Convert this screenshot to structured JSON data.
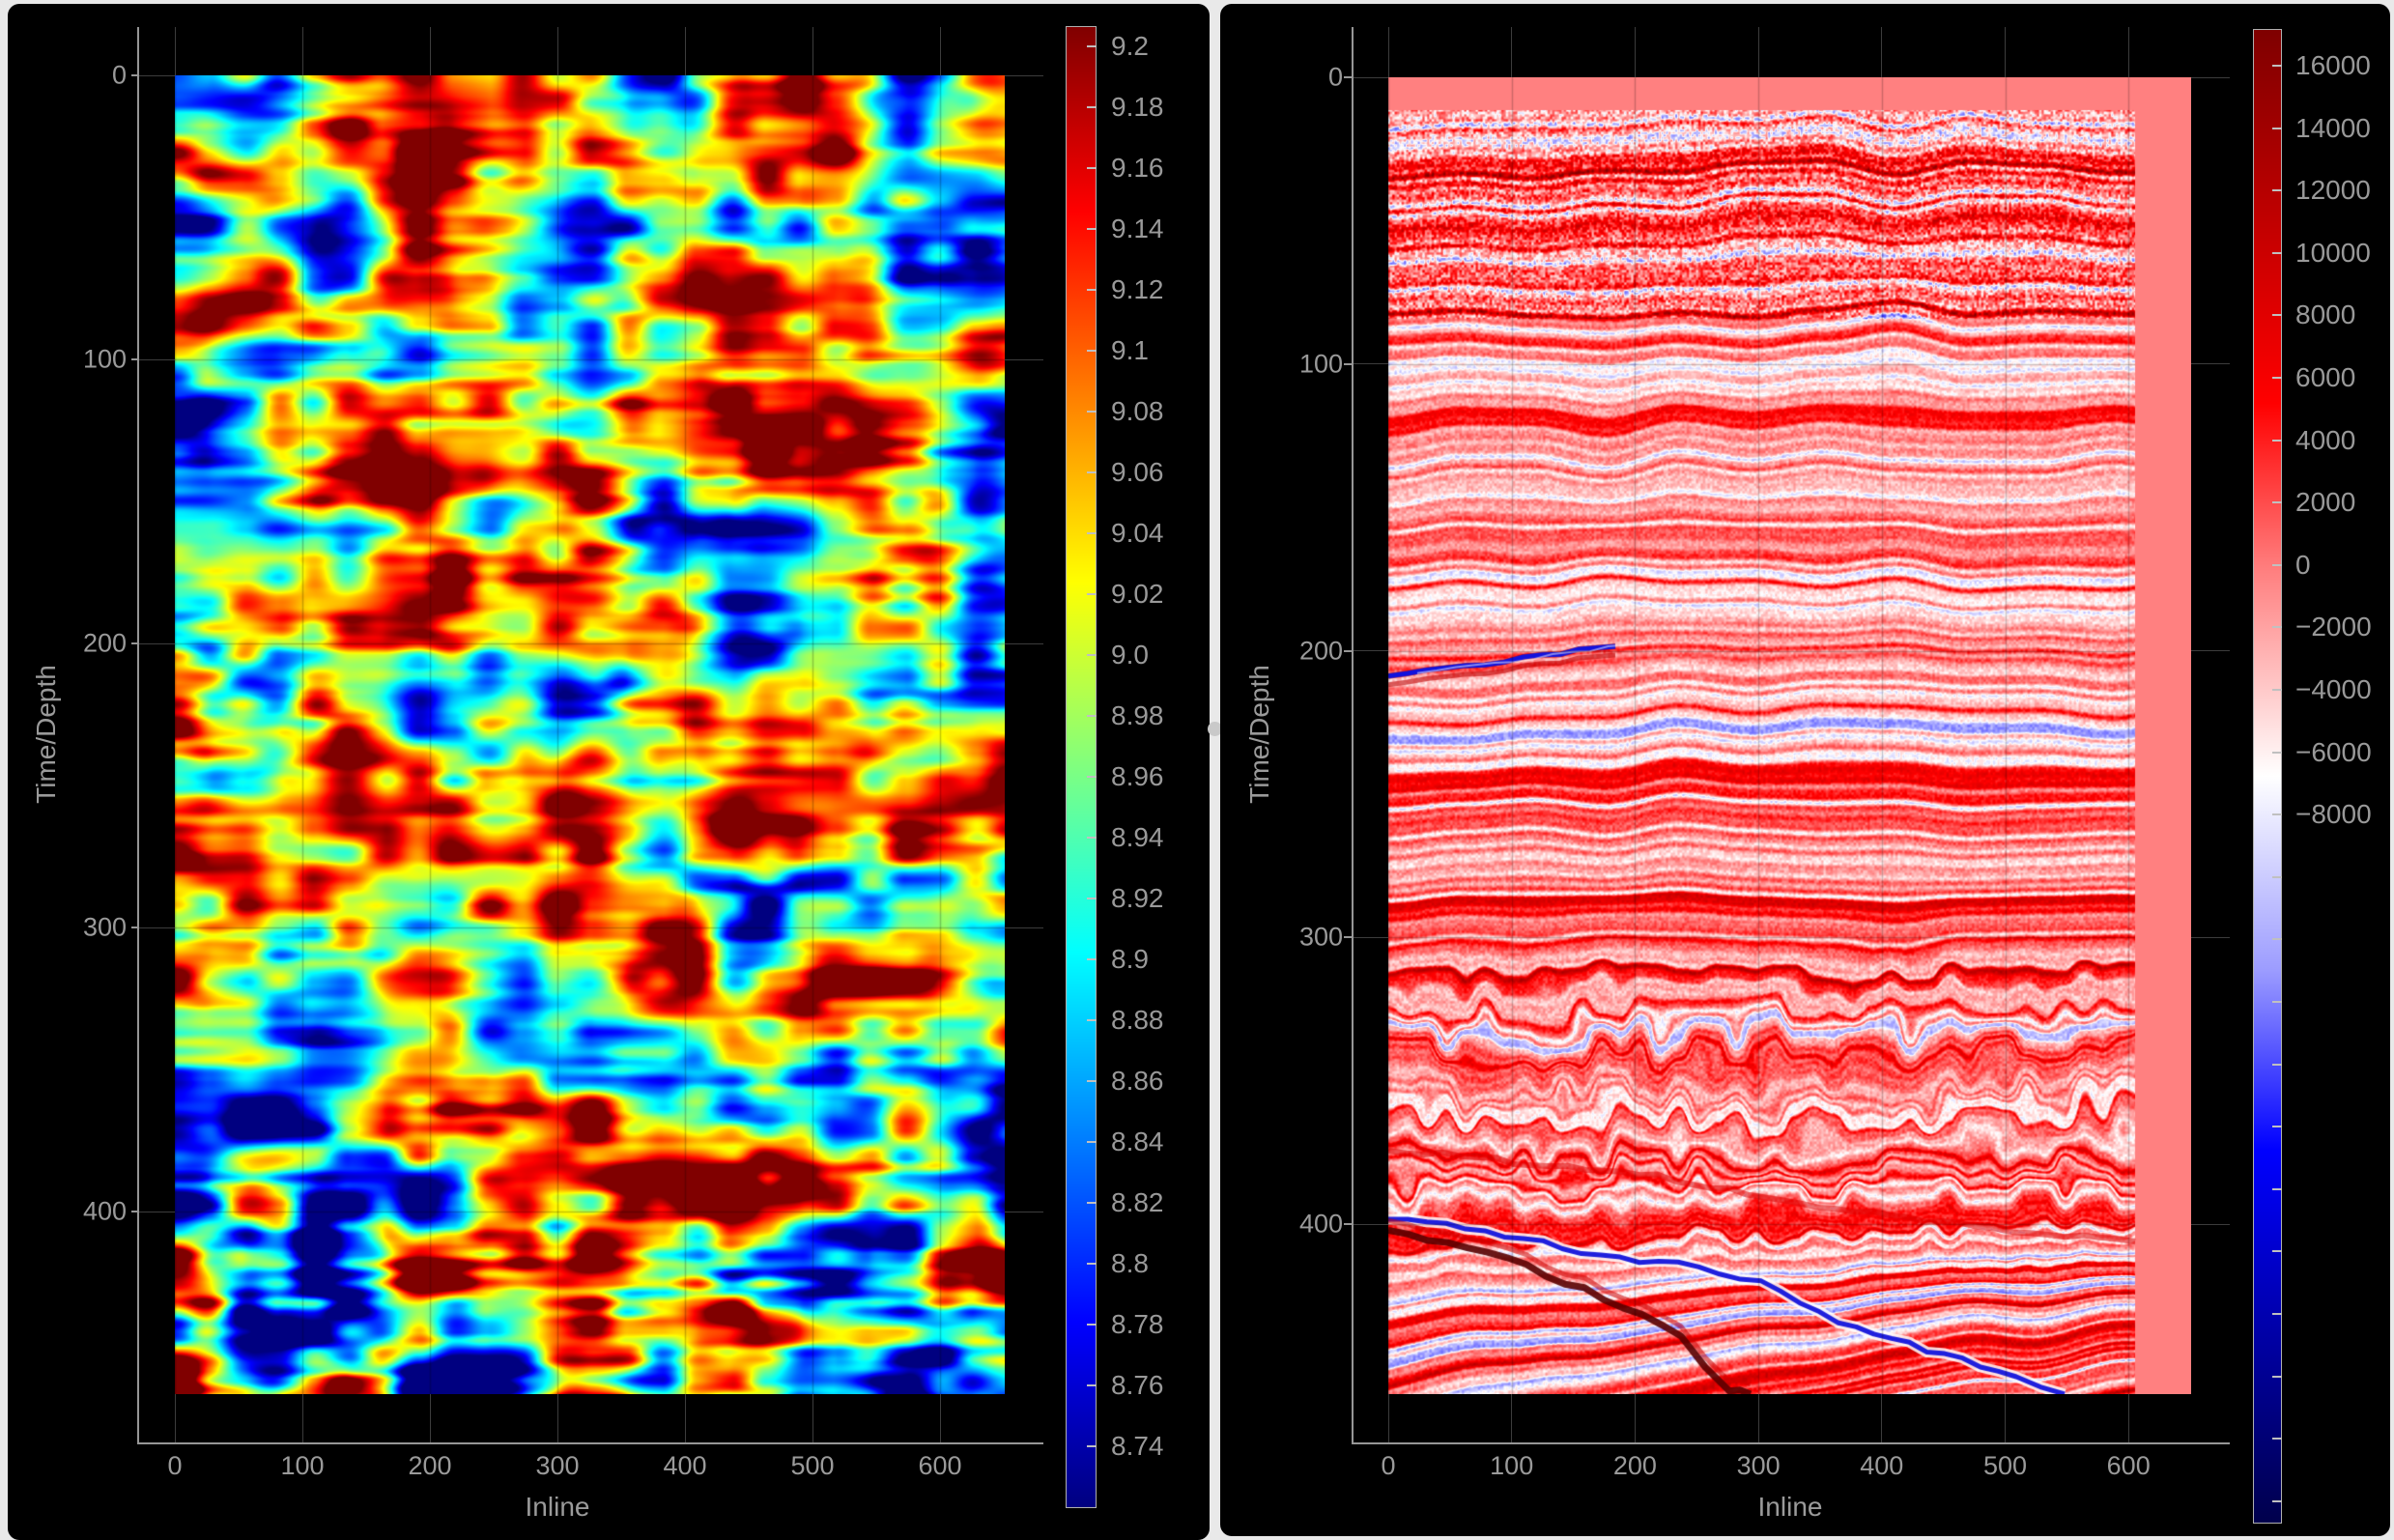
{
  "ui": {
    "chrome_background": "#e9e9e9",
    "window_background": "#000000",
    "tick_label_color": "#9a9a9a",
    "axis_label_color": "#9a9a9a",
    "grid_color": "#3c3c3c",
    "spine_color": "#969696",
    "divider_handle_color": "#c9c9c9"
  },
  "left_panel": {
    "xlabel": "Inline",
    "ylabel": "Time/Depth",
    "x_tick_labels": [
      "0",
      "100",
      "200",
      "300",
      "400",
      "500",
      "600"
    ],
    "y_tick_labels": [
      "0",
      "100",
      "200",
      "300",
      "400"
    ],
    "colorbar_tick_labels": [
      "9.2",
      "9.18",
      "9.16",
      "9.14",
      "9.12",
      "9.1",
      "9.08",
      "9.06",
      "9.04",
      "9.02",
      "9.0",
      "8.98",
      "8.96",
      "8.94",
      "8.92",
      "8.9",
      "8.88",
      "8.86",
      "8.84",
      "8.82",
      "8.8",
      "8.78",
      "8.76",
      "8.74"
    ],
    "colormap_name": "jet",
    "colormap_css_stops": [
      "#800000 0%",
      "#ff0000 12.5%",
      "#ffff00 37.5%",
      "#00ffff 62.5%",
      "#0000ff 87.5%",
      "#000080 100%"
    ]
  },
  "right_panel": {
    "xlabel": "Inline",
    "ylabel": "Time/Depth",
    "x_tick_labels": [
      "0",
      "100",
      "200",
      "300",
      "400",
      "500",
      "600"
    ],
    "y_tick_labels": [
      "0",
      "100",
      "200",
      "300",
      "400"
    ],
    "colorbar_tick_labels": [
      "16000",
      "14000",
      "12000",
      "10000",
      "8000",
      "6000",
      "4000",
      "2000",
      "0",
      "−2000",
      "−4000",
      "−6000",
      "−8000"
    ],
    "colorbar_unlabeled_extra_ticks": 11,
    "colormap_name": "seismic (red-white-blue)",
    "colormap_css_stops": [
      "#7f0000 0%",
      "#ff0000 25%",
      "#ff7d7d 36%",
      "#ffffff 50%",
      "#9c9cff 63%",
      "#0000ff 75%",
      "#00004c 100%"
    ]
  },
  "chart_data": [
    {
      "type": "heatmap",
      "panel": "left",
      "title": "",
      "xlabel": "Inline",
      "ylabel": "Time/Depth",
      "x_ticks": [
        0,
        100,
        200,
        300,
        400,
        500,
        600
      ],
      "y_ticks": [
        0,
        100,
        200,
        300,
        400
      ],
      "x_extent": [
        0,
        650
      ],
      "y_extent": [
        0,
        464
      ],
      "y_axis_inverted": true,
      "grid": true,
      "colormap": "jet",
      "colorbar_ticks": [
        9.2,
        9.18,
        9.16,
        9.14,
        9.12,
        9.1,
        9.08,
        9.06,
        9.04,
        9.02,
        9.0,
        8.98,
        8.96,
        8.94,
        8.92,
        8.9,
        8.88,
        8.86,
        8.84,
        8.82,
        8.8,
        8.78,
        8.76,
        8.74
      ],
      "colorbar_range": [
        8.72,
        9.21
      ],
      "value_typical_range": [
        8.88,
        9.06
      ],
      "description": "Smooth blobby velocity-style field: mostly green/cyan/yellow (~8.9-9.05) with orange-red highs (~9.1-9.2) and blue lows (~8.75-8.85); horizontal banding; stronger red/blue extremes below Time/Depth ~350."
    },
    {
      "type": "heatmap",
      "panel": "right",
      "title": "",
      "xlabel": "Inline",
      "ylabel": "Time/Depth",
      "x_ticks": [
        0,
        100,
        200,
        300,
        400,
        500,
        600
      ],
      "y_ticks": [
        0,
        100,
        200,
        300,
        400
      ],
      "x_extent": [
        0,
        650
      ],
      "y_extent": [
        0,
        464
      ],
      "y_axis_inverted": true,
      "grid": true,
      "colormap": "seismic (red-white-blue)",
      "colorbar_ticks": [
        16000,
        14000,
        12000,
        10000,
        8000,
        6000,
        4000,
        2000,
        0,
        -2000,
        -4000,
        -6000,
        -8000
      ],
      "colorbar_range": [
        -30000,
        17000
      ],
      "background_amplitude_color": "#ff8080",
      "features": [
        "solid pink no-data margin above Time/Depth ~12 and right of Inline ~600",
        "dense high-frequency strata with white speckle in top quarter",
        "thin blue negative horizon near Time/Depth 200 from Inline 0 to ~180",
        "strong blue horizon with white halo from (Inline 0, ~400) dipping to (~550, 465)",
        "dark maroon fault-like streak diverging below that horizon",
        "chaotic zigzag zone around Time/Depth 300-400"
      ]
    }
  ]
}
